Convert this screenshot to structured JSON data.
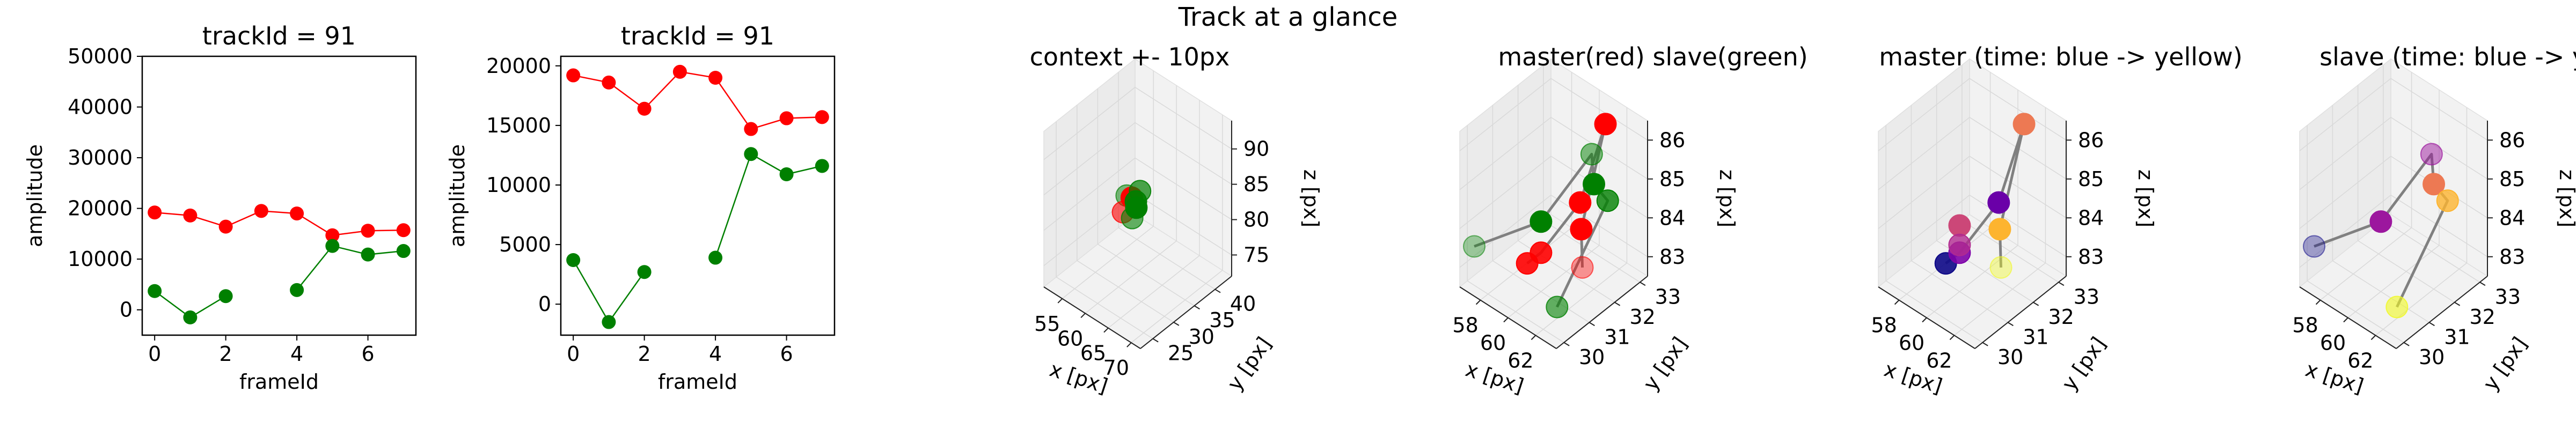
{
  "suptitle": "Track at a glance",
  "colors": {
    "master": "#ff0000",
    "slave": "#008000",
    "line3d": "#808080",
    "pane": "#f2f2f2",
    "grid": "#d9d9d9"
  },
  "chart_data": [
    {
      "type": "line",
      "title": "trackId = 91",
      "xlabel": "frameId",
      "ylabel": "amplitude",
      "xlim": [
        -0.35,
        7.35
      ],
      "ylim": [
        -5000,
        50000
      ],
      "xticks": [
        0,
        2,
        4,
        6
      ],
      "yticks": [
        0,
        10000,
        20000,
        30000,
        40000,
        50000
      ],
      "series": [
        {
          "color": "#ff0000",
          "segments": [
            {
              "x": [
                0,
                1,
                2,
                3,
                4,
                5,
                6,
                7
              ],
              "y": [
                19200,
                18600,
                16400,
                19500,
                19000,
                14700,
                15600,
                15700
              ]
            }
          ]
        },
        {
          "color": "#008000",
          "segments": [
            {
              "x": [
                0,
                1,
                2
              ],
              "y": [
                3700,
                -1500,
                2700
              ]
            },
            {
              "x": [
                4,
                5,
                6,
                7
              ],
              "y": [
                3900,
                12600,
                10900,
                11600
              ]
            }
          ]
        }
      ]
    },
    {
      "type": "line",
      "title": "trackId = 91",
      "xlabel": "frameId",
      "ylabel": "amplitude",
      "xlim": [
        -0.35,
        7.35
      ],
      "ylim": [
        -2600,
        20800
      ],
      "xticks": [
        0,
        2,
        4,
        6
      ],
      "yticks": [
        0,
        5000,
        10000,
        15000,
        20000
      ],
      "series": [
        {
          "color": "#ff0000",
          "segments": [
            {
              "x": [
                0,
                1,
                2,
                3,
                4,
                5,
                6,
                7
              ],
              "y": [
                19200,
                18600,
                16400,
                19500,
                19000,
                14700,
                15600,
                15700
              ]
            }
          ]
        },
        {
          "color": "#008000",
          "segments": [
            {
              "x": [
                0,
                1,
                2
              ],
              "y": [
                3700,
                -1500,
                2700
              ]
            },
            {
              "x": [
                4,
                5,
                6,
                7
              ],
              "y": [
                3900,
                12600,
                10900,
                11600
              ]
            }
          ]
        }
      ]
    },
    {
      "type": "scatter",
      "title": "context +- 10px",
      "xlabel": "x [px]",
      "ylabel": "y [px]",
      "zlabel": "z [px]",
      "xlim": [
        51,
        72
      ],
      "ylim": [
        22,
        44
      ],
      "zlim": [
        72,
        94
      ],
      "xticks": [
        55,
        60,
        65,
        70
      ],
      "yticks": [
        25,
        30,
        35,
        40
      ],
      "zticks": [
        75,
        80,
        85,
        90
      ],
      "points": [
        {
          "x": 60,
          "y": 32,
          "z": 84,
          "color": "#008000",
          "alpha": 0.5
        },
        {
          "x": 61,
          "y": 30,
          "z": 83,
          "color": "#ff0000",
          "alpha": 0.6
        },
        {
          "x": 62,
          "y": 31,
          "z": 85,
          "color": "#ff0000",
          "alpha": 1
        },
        {
          "x": 62,
          "y": 32,
          "z": 84,
          "color": "#008000",
          "alpha": 0.9
        },
        {
          "x": 63,
          "y": 31,
          "z": 84,
          "color": "#008000",
          "alpha": 1
        },
        {
          "x": 63,
          "y": 30,
          "z": 83,
          "color": "#008000",
          "alpha": 0.6
        },
        {
          "x": 62,
          "y": 33,
          "z": 85,
          "color": "#008000",
          "alpha": 0.7
        }
      ],
      "lines": []
    },
    {
      "type": "scatter",
      "title": "master(red) slave(green)",
      "xlabel": "x [px]",
      "ylabel": "y [px]",
      "zlabel": "z [px]",
      "xlim": [
        56.5,
        63.5
      ],
      "ylim": [
        29.7,
        33.3
      ],
      "zlim": [
        82.5,
        86.5
      ],
      "xticks": [
        58,
        60,
        62
      ],
      "yticks": [
        30,
        31,
        32,
        33
      ],
      "zticks": [
        83,
        84,
        85,
        86
      ],
      "points": [
        {
          "x": 57,
          "y": 30,
          "z": 83.5,
          "color": "#008000",
          "alpha": 0.35
        },
        {
          "x": 59,
          "y": 31,
          "z": 83,
          "color": "#ff0000",
          "alpha": 0.9
        },
        {
          "x": 60,
          "y": 31,
          "z": 83.5,
          "color": "#ff0000",
          "alpha": 0.9
        },
        {
          "x": 60,
          "y": 31,
          "z": 84.3,
          "color": "#008000",
          "alpha": 1
        },
        {
          "x": 61,
          "y": 32,
          "z": 84.5,
          "color": "#ff0000",
          "alpha": 1
        },
        {
          "x": 60,
          "y": 33,
          "z": 85,
          "color": "#008000",
          "alpha": 0.5
        },
        {
          "x": 61,
          "y": 33,
          "z": 86,
          "color": "#ff0000",
          "alpha": 1
        },
        {
          "x": 62,
          "y": 32,
          "z": 85.2,
          "color": "#008000",
          "alpha": 1
        },
        {
          "x": 62,
          "y": 31.5,
          "z": 84.3,
          "color": "#ff0000",
          "alpha": 1
        },
        {
          "x": 63,
          "y": 32,
          "z": 85,
          "color": "#008000",
          "alpha": 0.8
        },
        {
          "x": 63,
          "y": 31,
          "z": 83.8,
          "color": "#ff0000",
          "alpha": 0.4
        },
        {
          "x": 63,
          "y": 30,
          "z": 83.3,
          "color": "#008000",
          "alpha": 0.6
        }
      ],
      "lines": [
        [
          [
            59,
            31,
            83
          ],
          [
            60,
            31,
            83.5
          ],
          [
            61,
            32,
            84.5
          ],
          [
            61,
            33,
            86
          ],
          [
            62,
            31.5,
            84.3
          ],
          [
            63,
            31,
            83.8
          ]
        ],
        [
          [
            57,
            30,
            83.5
          ],
          [
            60,
            31,
            84.3
          ],
          [
            60,
            33,
            85
          ],
          [
            62,
            32,
            85.2
          ],
          [
            63,
            32,
            85
          ],
          [
            63,
            30,
            83.3
          ]
        ]
      ]
    },
    {
      "type": "scatter",
      "title": "master (time: blue -> yellow)",
      "xlabel": "x [px]",
      "ylabel": "y [px]",
      "zlabel": "z [px]",
      "xlim": [
        56.5,
        63.5
      ],
      "ylim": [
        29.7,
        33.3
      ],
      "zlim": [
        82.5,
        86.5
      ],
      "xticks": [
        58,
        60,
        62
      ],
      "yticks": [
        30,
        31,
        32,
        33
      ],
      "zticks": [
        83,
        84,
        85,
        86
      ],
      "points": [
        {
          "x": 59,
          "y": 31,
          "z": 83,
          "color": "#0d0887",
          "alpha": 0.9
        },
        {
          "x": 60,
          "y": 31,
          "z": 83.5,
          "color": "#7e03a8",
          "alpha": 0.9
        },
        {
          "x": 61,
          "y": 32,
          "z": 84.5,
          "color": "#6a00a8",
          "alpha": 1
        },
        {
          "x": 61,
          "y": 33,
          "z": 86,
          "color": "#ed7953",
          "alpha": 1
        },
        {
          "x": 62,
          "y": 31.5,
          "z": 84.3,
          "color": "#fdb42f",
          "alpha": 1
        },
        {
          "x": 63,
          "y": 31,
          "z": 83.8,
          "color": "#f0f921",
          "alpha": 0.4
        },
        {
          "x": 60,
          "y": 31,
          "z": 84.2,
          "color": "#cc4778",
          "alpha": 1
        },
        {
          "x": 60,
          "y": 31,
          "z": 83.7,
          "color": "#b12a90",
          "alpha": 0.8
        }
      ],
      "lines": [
        [
          [
            59,
            31,
            83
          ],
          [
            60,
            31,
            83.5
          ],
          [
            61,
            32,
            84.5
          ],
          [
            61,
            33,
            86
          ],
          [
            62,
            31.5,
            84.3
          ],
          [
            63,
            31,
            83.8
          ]
        ]
      ]
    },
    {
      "type": "scatter",
      "title": "slave (time: blue -> yellow)",
      "xlabel": "x [px]",
      "ylabel": "y [px]",
      "zlabel": "z [px]",
      "xlim": [
        56.5,
        63.5
      ],
      "ylim": [
        29.7,
        33.3
      ],
      "zlim": [
        82.5,
        86.5
      ],
      "xticks": [
        58,
        60,
        62
      ],
      "yticks": [
        30,
        31,
        32,
        33
      ],
      "zticks": [
        83,
        84,
        85,
        86
      ],
      "points": [
        {
          "x": 57,
          "y": 30,
          "z": 83.5,
          "color": "#0d0887",
          "alpha": 0.35
        },
        {
          "x": 60,
          "y": 31,
          "z": 84.3,
          "color": "#9c179e",
          "alpha": 1
        },
        {
          "x": 60,
          "y": 33,
          "z": 85,
          "color": "#9c179e",
          "alpha": 0.5
        },
        {
          "x": 62,
          "y": 32,
          "z": 85.2,
          "color": "#ed7953",
          "alpha": 1
        },
        {
          "x": 63,
          "y": 32,
          "z": 85,
          "color": "#fdb42f",
          "alpha": 0.8
        },
        {
          "x": 63,
          "y": 30,
          "z": 83.3,
          "color": "#f0f921",
          "alpha": 0.6
        }
      ],
      "lines": [
        [
          [
            57,
            30,
            83.5
          ],
          [
            60,
            31,
            84.3
          ],
          [
            60,
            33,
            85
          ],
          [
            62,
            32,
            85.2
          ],
          [
            63,
            32,
            85
          ],
          [
            63,
            30,
            83.3
          ]
        ]
      ]
    }
  ]
}
